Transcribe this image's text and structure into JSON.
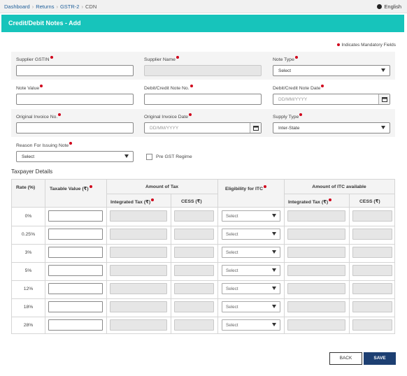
{
  "breadcrumb": {
    "items": [
      "Dashboard",
      "Returns",
      "GSTR-2",
      "CDN"
    ]
  },
  "language": "English",
  "title": "Credit/Debit Notes - Add",
  "mandatory_note": "Indicates Mandatory Fields",
  "form": {
    "supplier_gstin": {
      "label": "Supplier GSTIN",
      "value": ""
    },
    "supplier_name": {
      "label": "Supplier Name",
      "value": ""
    },
    "note_type": {
      "label": "Note Type",
      "value": "Select"
    },
    "note_value": {
      "label": "Note Value",
      "value": ""
    },
    "note_no": {
      "label": "Debit/Credit Note No.",
      "value": ""
    },
    "note_date": {
      "label": "Debit/Credit Note Date",
      "placeholder": "DD/MM/YYYY"
    },
    "orig_invoice_no": {
      "label": "Original Invoice No.",
      "value": ""
    },
    "orig_invoice_date": {
      "label": "Original Invoice Date",
      "placeholder": "DD/MM/YYYY"
    },
    "supply_type": {
      "label": "Supply Type",
      "value": "Inter-State"
    },
    "reason": {
      "label": "Reason For Issuing Note",
      "value": "Select"
    },
    "pre_gst": {
      "label": "Pre GST Regime",
      "checked": false
    }
  },
  "taxpayer_details": "Taxpayer Details",
  "table": {
    "headers": {
      "rate": "Rate (%)",
      "taxable": "Taxable Value (₹)",
      "amount_of_tax": "Amount of Tax",
      "integrated_tax": "Integrated Tax (₹)",
      "cess": "CESS (₹)",
      "eligibility": "Eligibility for ITC",
      "itc_available": "Amount of ITC available",
      "itc_integrated_tax": "Integrated Tax (₹)",
      "itc_cess": "CESS (₹)"
    },
    "rows": [
      {
        "rate": "0%",
        "eligibility": "Select"
      },
      {
        "rate": "0.25%",
        "eligibility": "Select"
      },
      {
        "rate": "3%",
        "eligibility": "Select"
      },
      {
        "rate": "5%",
        "eligibility": "Select"
      },
      {
        "rate": "12%",
        "eligibility": "Select"
      },
      {
        "rate": "18%",
        "eligibility": "Select"
      },
      {
        "rate": "28%",
        "eligibility": "Select"
      }
    ]
  },
  "buttons": {
    "back": "BACK",
    "save": "SAVE"
  },
  "colors": {
    "title_bar": "#17c4bb",
    "required_dot": "#d0021b",
    "save_button": "#1d3f72"
  }
}
